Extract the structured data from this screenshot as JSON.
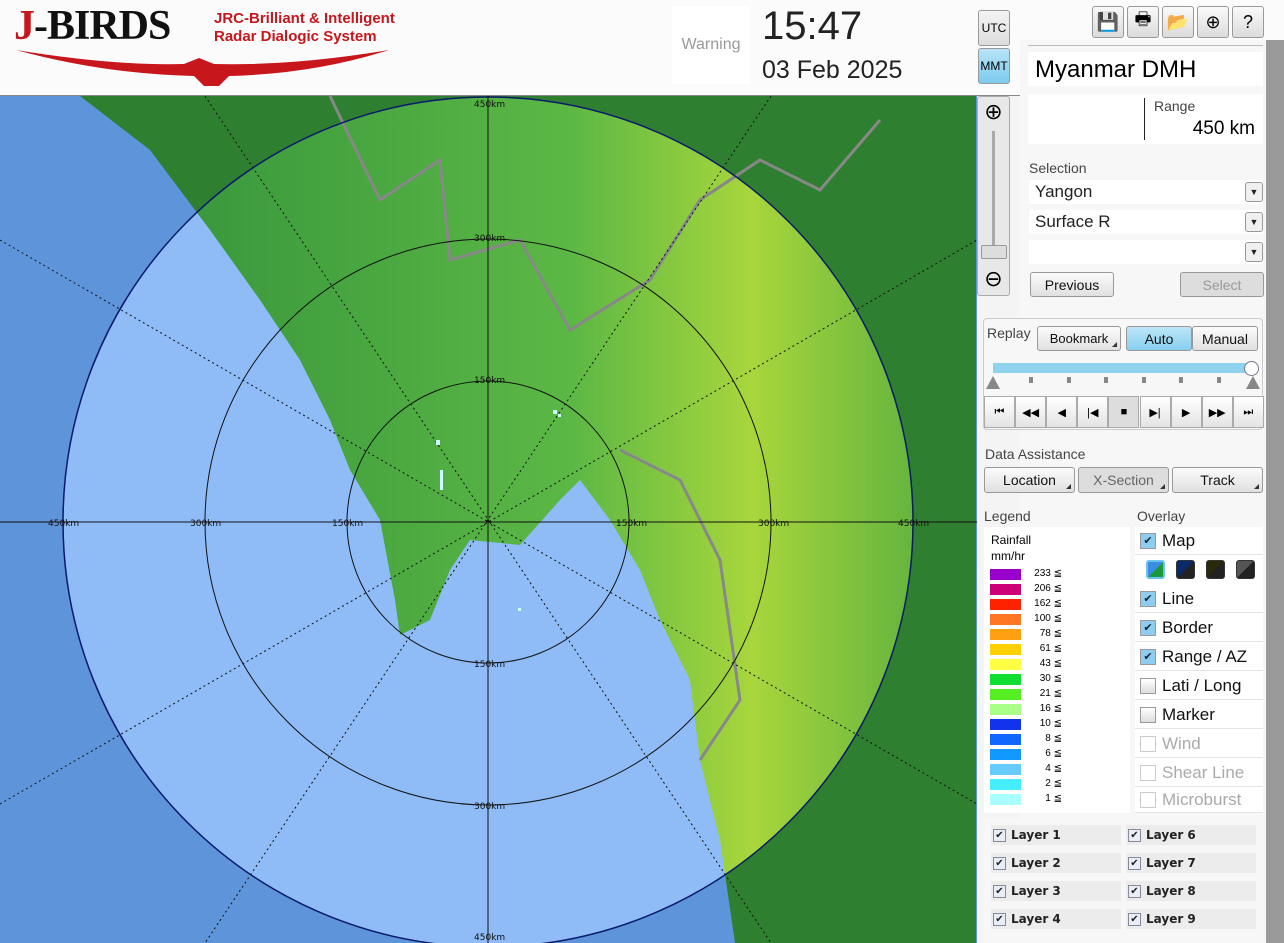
{
  "header": {
    "logo_text": "J-BIRDS",
    "logo_subtitle_line1": "JRC-Brilliant & Intelligent",
    "logo_subtitle_line2": "Radar Dialogic System",
    "warning_label": "Warning",
    "time": "15:47",
    "date": "03 Feb 2025",
    "tz_utc": "UTC",
    "tz_mmt": "MMT",
    "active_tz": "MMT",
    "tools": [
      "save-icon",
      "print-icon",
      "folder-open-icon",
      "add-window-icon",
      "help-icon"
    ]
  },
  "map": {
    "ring_labels": {
      "top": [
        "450km",
        "300km",
        "150km"
      ],
      "bottom": [
        "150km",
        "300km",
        "450km"
      ],
      "left": [
        "450km",
        "300km",
        "150km"
      ],
      "right": [
        "150km",
        "300km",
        "450km"
      ]
    }
  },
  "panel": {
    "site": "Myanmar DMH",
    "range_label": "Range",
    "range_value": "450 km",
    "selection_label": "Selection",
    "selection_site": "Yangon",
    "selection_product": "Surface R",
    "selection_third": "",
    "previous": "Previous",
    "select": "Select",
    "replay": {
      "label": "Replay",
      "bookmark": "Bookmark",
      "auto": "Auto",
      "manual": "Manual",
      "mode": "Auto",
      "position": 1.0,
      "controls": [
        "⏮",
        "◀◀",
        "◀",
        "|◀",
        "■",
        "▶|",
        "▶",
        "▶▶",
        "⏭"
      ]
    },
    "data_assistance": {
      "label": "Data Assistance",
      "location": "Location",
      "xsection": "X-Section",
      "track": "Track"
    },
    "legend": {
      "label": "Legend",
      "title1": "Rainfall",
      "title2": "mm/hr",
      "items": [
        {
          "v": "233 ≦",
          "c": "#9900cc"
        },
        {
          "v": "206 ≦",
          "c": "#cc0077"
        },
        {
          "v": "162 ≦",
          "c": "#ff2200"
        },
        {
          "v": "100 ≦",
          "c": "#ff7722"
        },
        {
          "v": "78 ≦",
          "c": "#ffa010"
        },
        {
          "v": "61 ≦",
          "c": "#ffd000"
        },
        {
          "v": "43 ≦",
          "c": "#ffff44"
        },
        {
          "v": "30 ≦",
          "c": "#11dd33"
        },
        {
          "v": "21 ≦",
          "c": "#55ee22"
        },
        {
          "v": "16 ≦",
          "c": "#aaff88"
        },
        {
          "v": "10 ≦",
          "c": "#1133ee"
        },
        {
          "v": "8 ≦",
          "c": "#1166ff"
        },
        {
          "v": "6 ≦",
          "c": "#1199ff"
        },
        {
          "v": "4 ≦",
          "c": "#66ccff"
        },
        {
          "v": "2 ≦",
          "c": "#44eeff"
        },
        {
          "v": "1 ≦",
          "c": "#aaffff"
        }
      ]
    },
    "overlay": {
      "label": "Overlay",
      "items": [
        {
          "label": "Map",
          "checked": true,
          "enabled": true
        },
        {
          "label": "Line",
          "checked": true,
          "enabled": true
        },
        {
          "label": "Border",
          "checked": true,
          "enabled": true
        },
        {
          "label": "Range / AZ",
          "checked": true,
          "enabled": true
        },
        {
          "label": "Lati / Long",
          "checked": false,
          "enabled": true
        },
        {
          "label": "Marker",
          "checked": false,
          "enabled": true
        },
        {
          "label": "Wind",
          "checked": false,
          "enabled": false
        },
        {
          "label": "Shear Line",
          "checked": false,
          "enabled": false
        },
        {
          "label": "Microburst",
          "checked": false,
          "enabled": false
        }
      ],
      "map_styles": [
        "#3a8de0",
        "#0a2a6a",
        "#2a2a0a",
        "#555555"
      ]
    },
    "layers": [
      "Layer 1",
      "Layer 2",
      "Layer 3",
      "Layer 4",
      "Layer 6",
      "Layer 7",
      "Layer 8",
      "Layer 9"
    ]
  }
}
